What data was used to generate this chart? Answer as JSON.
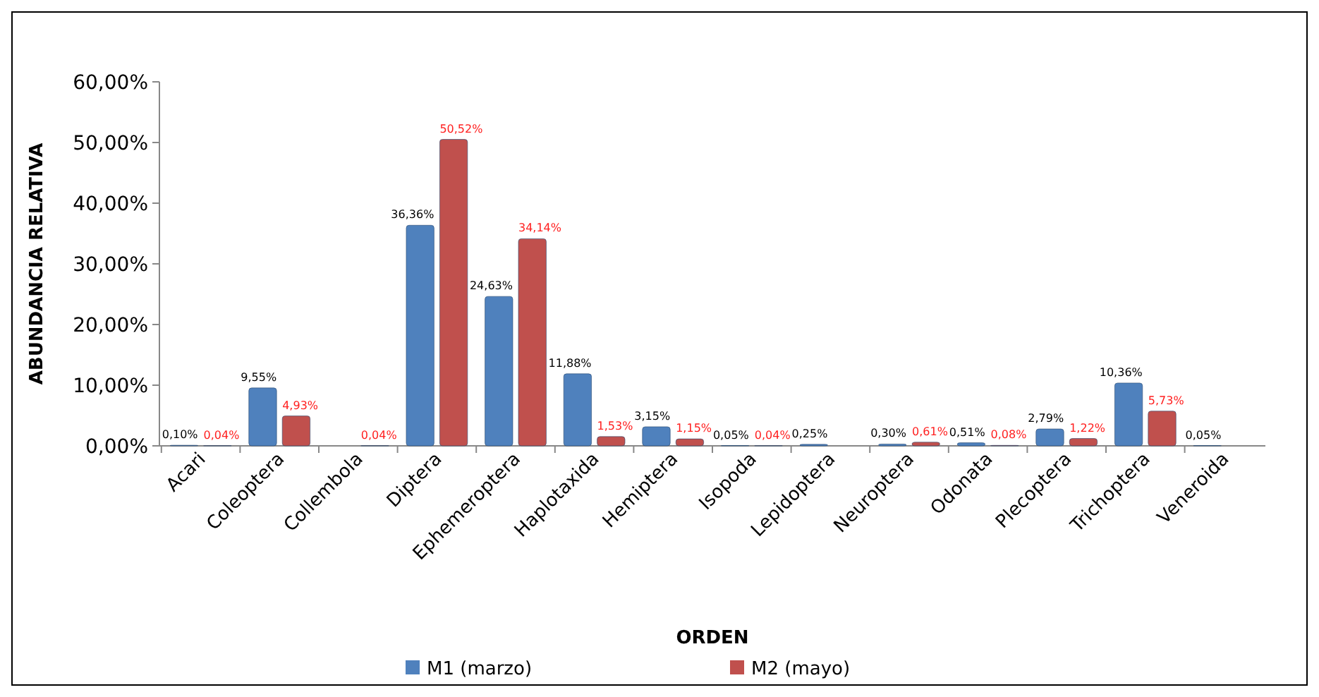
{
  "chart_data": {
    "type": "bar",
    "xlabel": "ORDEN",
    "ylabel": "ABUNDANCIA RELATIVA",
    "categories": [
      "Acari",
      "Coleoptera",
      "Collembola",
      "Diptera",
      "Ephemeroptera",
      "Haplotaxida",
      "Hemiptera",
      "Isopoda",
      "Lepidoptera",
      "Neuroptera",
      "Odonata",
      "Plecoptera",
      "Trichoptera",
      "Veneroida"
    ],
    "series": [
      {
        "name": "M1 (marzo)",
        "color": "#4f81bd",
        "values": [
          0.1,
          9.55,
          null,
          36.36,
          24.63,
          11.88,
          3.15,
          0.05,
          0.25,
          0.3,
          0.51,
          2.79,
          10.36,
          0.05
        ],
        "value_labels": [
          "0,10%",
          "9,55%",
          null,
          "36,36%",
          "24,63%",
          "11,88%",
          "3,15%",
          "0,05%",
          "0,25%",
          "0,30%",
          "0,51%",
          "2,79%",
          "10,36%",
          "0,05%"
        ]
      },
      {
        "name": "M2 (mayo)",
        "color": "#c0504d",
        "values": [
          0.04,
          4.93,
          0.04,
          50.52,
          34.14,
          1.53,
          1.15,
          0.04,
          null,
          0.61,
          0.08,
          1.22,
          5.73,
          null
        ],
        "value_labels": [
          "0,04%",
          "4,93%",
          "0,04%",
          "50,52%",
          "34,14%",
          "1,53%",
          "1,15%",
          "0,04%",
          null,
          "0,61%",
          "0,08%",
          "1,22%",
          "5,73%",
          null
        ]
      }
    ],
    "ylim": [
      0,
      60
    ],
    "yticks": [
      {
        "value": 0,
        "label": "0,00%"
      },
      {
        "value": 10,
        "label": "10,00%"
      },
      {
        "value": 20,
        "label": "20,00%"
      },
      {
        "value": 30,
        "label": "30,00%"
      },
      {
        "value": 40,
        "label": "40,00%"
      },
      {
        "value": 50,
        "label": "50,00%"
      },
      {
        "value": 60,
        "label": "60,00%"
      }
    ],
    "legend": "bottom"
  }
}
